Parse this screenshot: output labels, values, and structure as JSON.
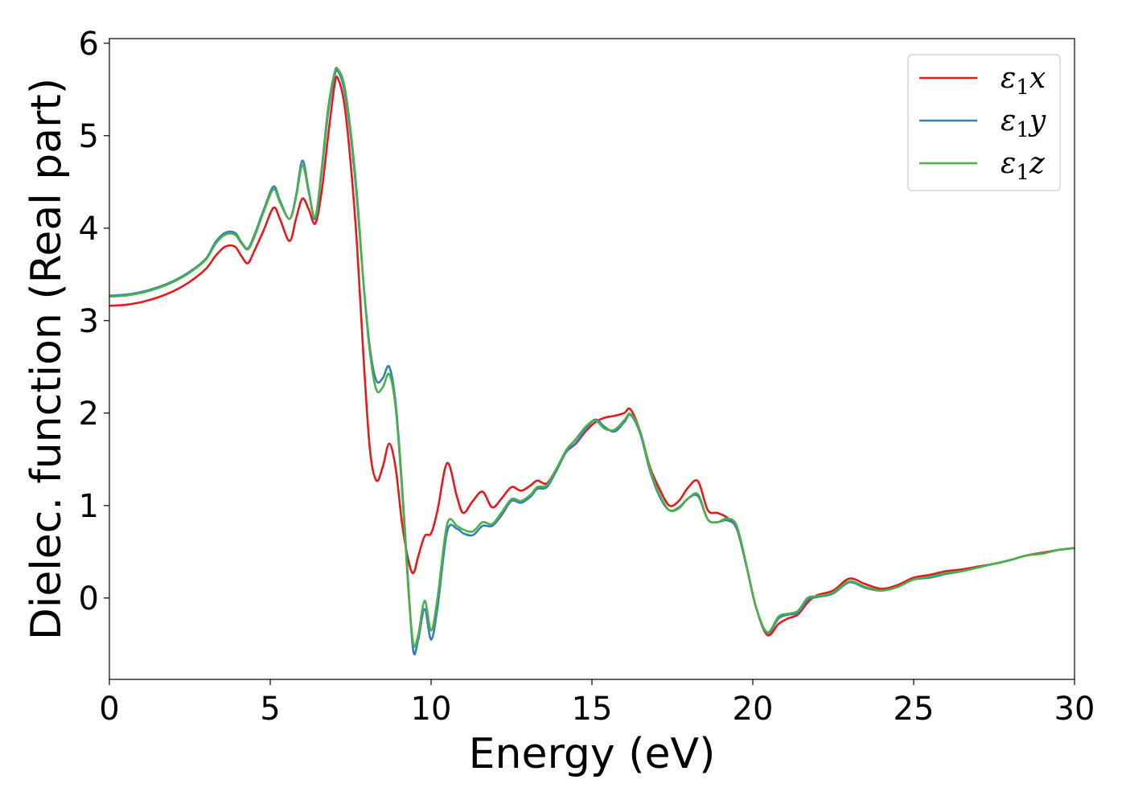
{
  "chart_data": {
    "type": "line",
    "title": "",
    "xlabel": "Energy (eV)",
    "ylabel": "Dielec. function (Real part)",
    "xlim": [
      0,
      30
    ],
    "ylim": [
      -0.88,
      6.05
    ],
    "xticks": [
      "0",
      "5",
      "10",
      "15",
      "20",
      "25",
      "30"
    ],
    "yticks": [
      "0",
      "1",
      "2",
      "3",
      "4",
      "5",
      "6"
    ],
    "grid": false,
    "legend_position": "top-right",
    "series": [
      {
        "name": "ε₁x",
        "label_main": "ε",
        "label_sub": "1",
        "label_var": "x",
        "color": "#e41a1c",
        "x": [
          0,
          0.5,
          1,
          1.5,
          2,
          2.5,
          3,
          3.3,
          3.6,
          3.9,
          4.1,
          4.3,
          4.5,
          4.8,
          5.1,
          5.3,
          5.6,
          5.8,
          6.0,
          6.2,
          6.4,
          6.6,
          6.8,
          7.0,
          7.1,
          7.3,
          7.5,
          7.7,
          7.9,
          8.1,
          8.3,
          8.5,
          8.7,
          8.9,
          9.1,
          9.3,
          9.45,
          9.6,
          9.8,
          10.0,
          10.2,
          10.5,
          10.8,
          11.0,
          11.3,
          11.6,
          11.9,
          12.2,
          12.5,
          12.8,
          13.1,
          13.3,
          13.6,
          13.9,
          14.2,
          14.5,
          14.8,
          15.1,
          15.4,
          15.7,
          16.0,
          16.2,
          16.5,
          16.8,
          17.1,
          17.4,
          17.7,
          18.0,
          18.3,
          18.6,
          18.9,
          19.2,
          19.5,
          19.8,
          20.1,
          20.45,
          20.8,
          21.1,
          21.4,
          21.7,
          22.0,
          22.5,
          23.0,
          23.5,
          24.0,
          24.5,
          25.0,
          25.5,
          26.0,
          26.5,
          27.0,
          27.5,
          28.0,
          28.5,
          29.0,
          29.5,
          30.0
        ],
        "y": [
          3.16,
          3.17,
          3.2,
          3.25,
          3.32,
          3.42,
          3.56,
          3.7,
          3.8,
          3.8,
          3.7,
          3.62,
          3.75,
          3.98,
          4.22,
          4.1,
          3.86,
          4.1,
          4.32,
          4.2,
          4.05,
          4.4,
          5.0,
          5.55,
          5.62,
          5.35,
          4.7,
          3.8,
          2.6,
          1.6,
          1.27,
          1.42,
          1.67,
          1.4,
          0.8,
          0.4,
          0.27,
          0.45,
          0.67,
          0.7,
          0.95,
          1.46,
          1.1,
          0.92,
          1.05,
          1.15,
          0.98,
          1.08,
          1.2,
          1.16,
          1.22,
          1.27,
          1.24,
          1.4,
          1.58,
          1.67,
          1.8,
          1.9,
          1.95,
          1.97,
          2.0,
          2.04,
          1.8,
          1.42,
          1.18,
          1.0,
          1.05,
          1.2,
          1.26,
          0.95,
          0.92,
          0.87,
          0.75,
          0.35,
          -0.1,
          -0.4,
          -0.28,
          -0.22,
          -0.18,
          -0.05,
          0.03,
          0.08,
          0.21,
          0.15,
          0.1,
          0.14,
          0.22,
          0.25,
          0.29,
          0.31,
          0.34,
          0.37,
          0.41,
          0.46,
          0.49,
          0.52,
          0.54
        ]
      },
      {
        "name": "ε₁y",
        "label_main": "ε",
        "label_sub": "1",
        "label_var": "y",
        "color": "#377eb8",
        "x": [
          0,
          0.5,
          1,
          1.5,
          2,
          2.5,
          3,
          3.3,
          3.6,
          3.9,
          4.1,
          4.3,
          4.5,
          4.8,
          5.1,
          5.3,
          5.6,
          5.8,
          6.0,
          6.2,
          6.4,
          6.6,
          6.8,
          7.0,
          7.1,
          7.3,
          7.5,
          7.7,
          7.9,
          8.1,
          8.3,
          8.5,
          8.7,
          8.9,
          9.1,
          9.3,
          9.45,
          9.6,
          9.8,
          10.0,
          10.2,
          10.5,
          10.8,
          11.0,
          11.3,
          11.6,
          11.9,
          12.2,
          12.5,
          12.8,
          13.1,
          13.3,
          13.6,
          13.9,
          14.2,
          14.5,
          14.8,
          15.1,
          15.4,
          15.7,
          16.0,
          16.2,
          16.5,
          16.8,
          17.1,
          17.4,
          17.7,
          18.0,
          18.3,
          18.6,
          18.9,
          19.2,
          19.5,
          19.8,
          20.1,
          20.45,
          20.8,
          21.1,
          21.4,
          21.7,
          22.0,
          22.5,
          23.0,
          23.5,
          24.0,
          24.5,
          25.0,
          25.5,
          26.0,
          26.5,
          27.0,
          27.5,
          28.0,
          28.5,
          29.0,
          29.5,
          30.0
        ],
        "y": [
          3.27,
          3.28,
          3.31,
          3.36,
          3.43,
          3.53,
          3.67,
          3.85,
          3.95,
          3.95,
          3.85,
          3.78,
          3.92,
          4.2,
          4.45,
          4.3,
          4.1,
          4.35,
          4.73,
          4.4,
          4.1,
          4.62,
          5.25,
          5.65,
          5.7,
          5.5,
          5.0,
          4.3,
          3.4,
          2.7,
          2.35,
          2.38,
          2.5,
          2.1,
          1.2,
          0.1,
          -0.58,
          -0.45,
          -0.12,
          -0.45,
          -0.1,
          0.72,
          0.75,
          0.7,
          0.68,
          0.78,
          0.78,
          0.9,
          1.05,
          1.03,
          1.1,
          1.18,
          1.2,
          1.38,
          1.58,
          1.68,
          1.82,
          1.93,
          1.85,
          1.8,
          1.9,
          1.98,
          1.78,
          1.38,
          1.1,
          0.95,
          0.98,
          1.08,
          1.1,
          0.85,
          0.82,
          0.84,
          0.75,
          0.35,
          -0.1,
          -0.38,
          -0.22,
          -0.18,
          -0.16,
          -0.02,
          0.01,
          0.05,
          0.17,
          0.11,
          0.08,
          0.12,
          0.2,
          0.22,
          0.26,
          0.29,
          0.33,
          0.37,
          0.41,
          0.46,
          0.48,
          0.52,
          0.54
        ]
      },
      {
        "name": "ε₁z",
        "label_main": "ε",
        "label_sub": "1",
        "label_var": "z",
        "color": "#4daf4a",
        "x": [
          0,
          0.5,
          1,
          1.5,
          2,
          2.5,
          3,
          3.3,
          3.6,
          3.9,
          4.1,
          4.3,
          4.5,
          4.8,
          5.1,
          5.3,
          5.6,
          5.8,
          6.0,
          6.2,
          6.4,
          6.6,
          6.8,
          7.0,
          7.1,
          7.3,
          7.5,
          7.7,
          7.9,
          8.1,
          8.3,
          8.5,
          8.7,
          8.9,
          9.1,
          9.3,
          9.45,
          9.6,
          9.8,
          10.0,
          10.2,
          10.5,
          10.8,
          11.0,
          11.3,
          11.6,
          11.9,
          12.2,
          12.5,
          12.8,
          13.1,
          13.3,
          13.6,
          13.9,
          14.2,
          14.5,
          14.8,
          15.1,
          15.4,
          15.7,
          16.0,
          16.2,
          16.5,
          16.8,
          17.1,
          17.4,
          17.7,
          18.0,
          18.3,
          18.6,
          18.9,
          19.2,
          19.5,
          19.8,
          20.1,
          20.45,
          20.8,
          21.1,
          21.4,
          21.7,
          22.0,
          22.5,
          23.0,
          23.5,
          24.0,
          24.5,
          25.0,
          25.5,
          26.0,
          26.5,
          27.0,
          27.5,
          28.0,
          28.5,
          29.0,
          29.5,
          30.0
        ],
        "y": [
          3.26,
          3.27,
          3.3,
          3.35,
          3.42,
          3.52,
          3.66,
          3.83,
          3.93,
          3.93,
          3.84,
          3.77,
          3.9,
          4.18,
          4.42,
          4.28,
          4.1,
          4.33,
          4.68,
          4.38,
          4.12,
          4.65,
          5.3,
          5.68,
          5.72,
          5.55,
          5.05,
          4.35,
          3.4,
          2.65,
          2.25,
          2.28,
          2.42,
          2.05,
          1.15,
          0.05,
          -0.5,
          -0.4,
          -0.03,
          -0.35,
          0.0,
          0.8,
          0.78,
          0.74,
          0.72,
          0.82,
          0.8,
          0.93,
          1.07,
          1.05,
          1.12,
          1.2,
          1.22,
          1.4,
          1.6,
          1.72,
          1.85,
          1.92,
          1.83,
          1.82,
          1.92,
          1.99,
          1.8,
          1.4,
          1.12,
          0.95,
          0.97,
          1.08,
          1.12,
          0.85,
          0.82,
          0.86,
          0.78,
          0.36,
          -0.1,
          -0.37,
          -0.2,
          -0.17,
          -0.14,
          0.0,
          0.02,
          0.06,
          0.18,
          0.12,
          0.08,
          0.12,
          0.2,
          0.23,
          0.27,
          0.29,
          0.33,
          0.37,
          0.41,
          0.46,
          0.48,
          0.52,
          0.54
        ]
      }
    ]
  }
}
